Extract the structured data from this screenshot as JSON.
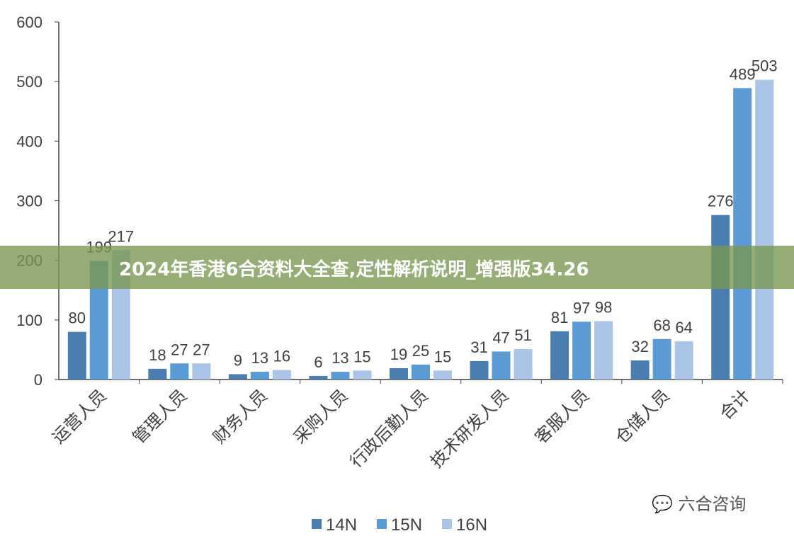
{
  "chart_data": {
    "type": "bar",
    "categories": [
      "运营人员",
      "管理人员",
      "财务人员",
      "采购人员",
      "行政后勤人员",
      "技术研发人员",
      "客服人员",
      "仓储人员",
      "合计"
    ],
    "series": [
      {
        "name": "14N",
        "values": [
          80,
          18,
          9,
          6,
          19,
          31,
          81,
          32,
          276
        ],
        "color": "#4a7eb0"
      },
      {
        "name": "15N",
        "values": [
          199,
          27,
          13,
          13,
          25,
          47,
          97,
          68,
          489
        ],
        "color": "#5b9bd5"
      },
      {
        "name": "16N",
        "values": [
          217,
          27,
          16,
          15,
          15,
          51,
          98,
          64,
          503
        ],
        "color": "#a9c4e6"
      }
    ],
    "ylim": [
      0,
      600
    ],
    "yticks": [
      0,
      100,
      200,
      300,
      400,
      500,
      600
    ],
    "grid": false,
    "legend": "bottom"
  },
  "banner": {
    "text": "2024年香港6合资料大全查,定性解析说明_增强版34.26"
  },
  "watermark": {
    "text": "六合咨询",
    "icon": "wechat-icon"
  }
}
